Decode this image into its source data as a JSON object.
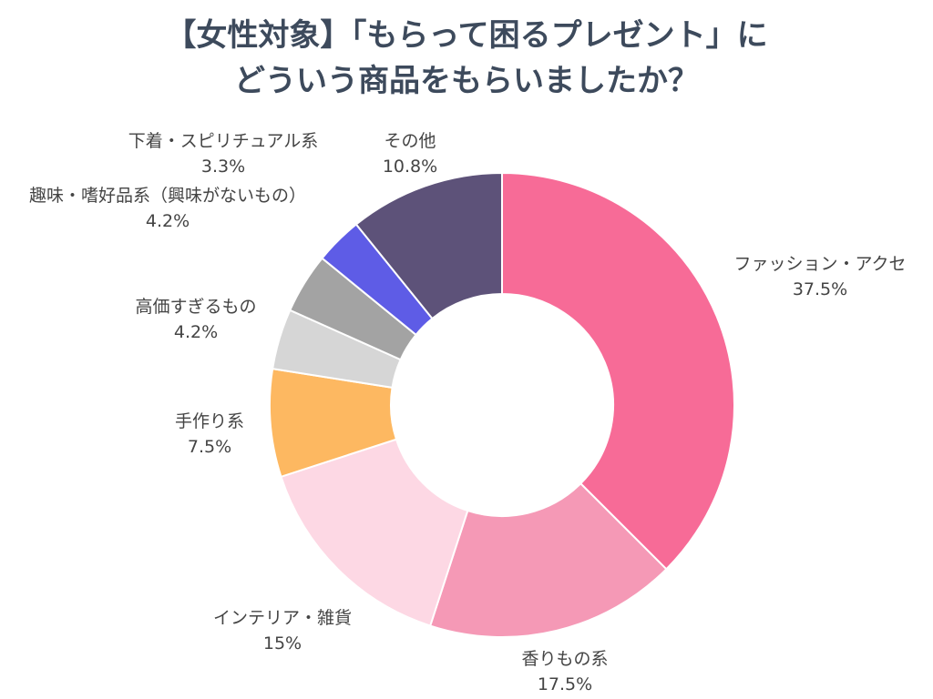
{
  "chart_data": {
    "type": "donut",
    "title_lines": [
      "【女性対象】「もらって困るプレゼント」に",
      "どういう商品をもらいましたか？"
    ],
    "slices": [
      {
        "label": "ファッション・アクセ",
        "value": 37.5,
        "value_text": "37.5%",
        "color": "#f76b97"
      },
      {
        "label": "香りもの系",
        "value": 17.5,
        "value_text": "17.5%",
        "color": "#f599b6"
      },
      {
        "label": "インテリア・雑貨",
        "value": 15,
        "value_text": "15%",
        "color": "#fdd8e4"
      },
      {
        "label": "手作り系",
        "value": 7.5,
        "value_text": "7.5%",
        "color": "#fdb861"
      },
      {
        "label": "高価すぎるもの",
        "value": 4.2,
        "value_text": "4.2%",
        "color": "#d6d6d6"
      },
      {
        "label": "趣味・嗜好品系（興味がないもの）",
        "value": 4.2,
        "value_text": "4.2%",
        "color": "#a3a3a3"
      },
      {
        "label": "下着・スピリチュアル系",
        "value": 3.3,
        "value_text": "3.3%",
        "color": "#5e5ce6"
      },
      {
        "label": "その他",
        "value": 10.8,
        "value_text": "10.8%",
        "color": "#5d5279"
      }
    ]
  }
}
